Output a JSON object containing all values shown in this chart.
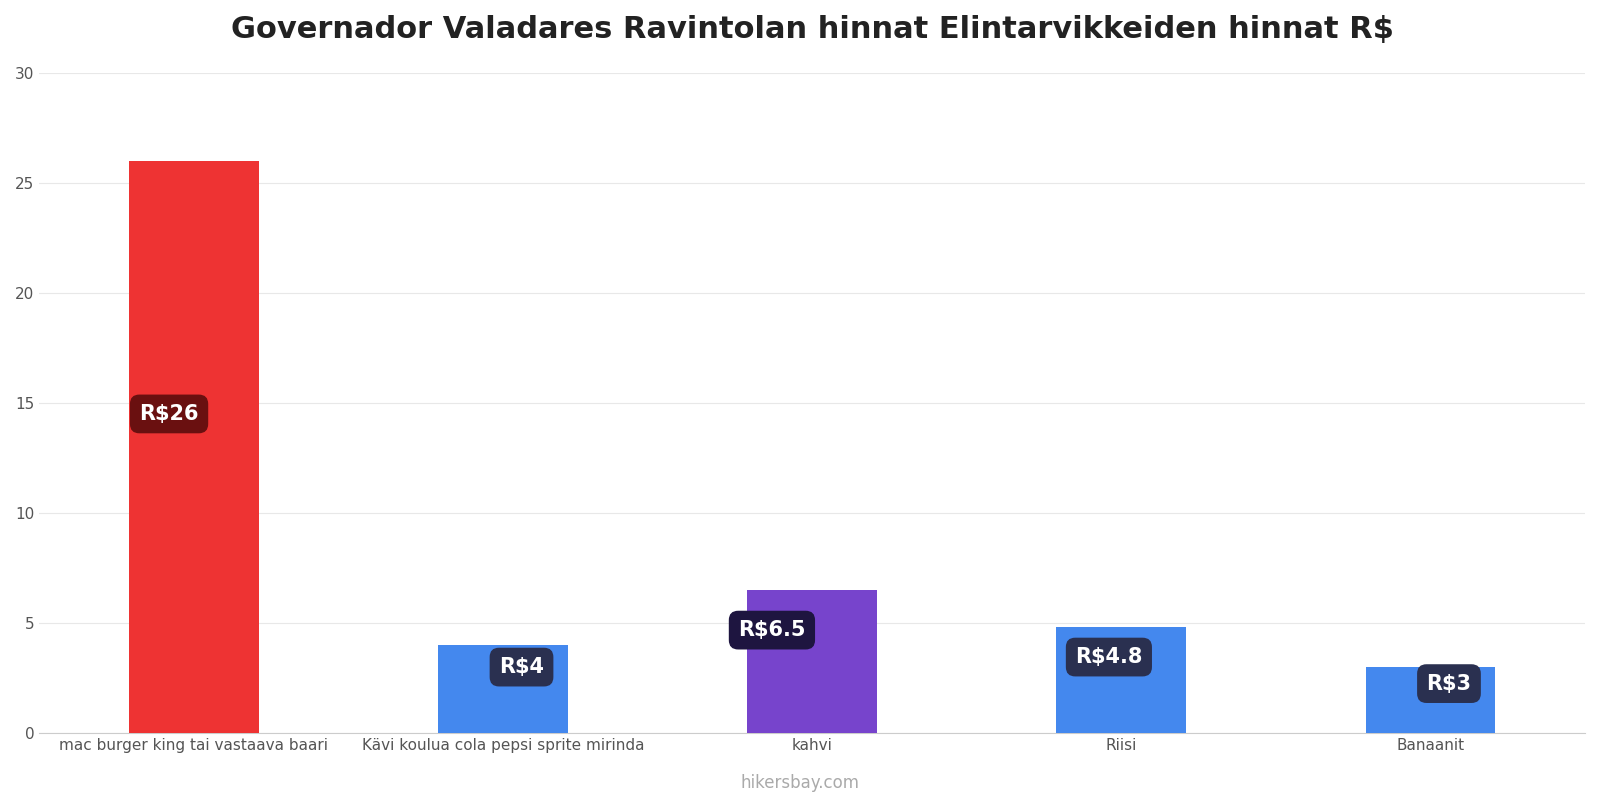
{
  "title": "Governador Valadares Ravintolan hinnat Elintarvikkeiden hinnat R$",
  "categories": [
    "mac burger king tai vastaava baari",
    "Kävi koulua cola pepsi sprite mirinda",
    "kahvi",
    "Riisi",
    "Banaanit"
  ],
  "values": [
    26,
    4,
    6.5,
    4.8,
    3
  ],
  "labels": [
    "R$26",
    "R$4",
    "R$6.5",
    "R$4.8",
    "R$3"
  ],
  "bar_colors": [
    "#ee3333",
    "#4488ee",
    "#7744cc",
    "#4488ee",
    "#4488ee"
  ],
  "label_bg_colors": [
    "#6a1010",
    "#2a3050",
    "#1e1540",
    "#2a3050",
    "#2a3050"
  ],
  "ylim": [
    0,
    30
  ],
  "yticks": [
    0,
    5,
    10,
    15,
    20,
    25,
    30
  ],
  "background_color": "#ffffff",
  "title_fontsize": 22,
  "footer_text": "hikersbay.com",
  "footer_color": "#aaaaaa",
  "label_fontsize": 15
}
